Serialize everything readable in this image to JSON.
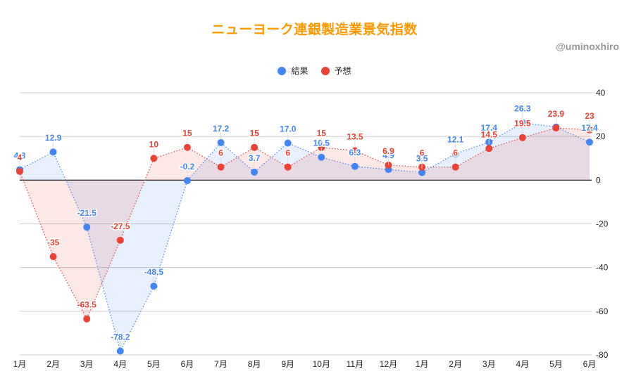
{
  "header": {
    "title": "ニューヨーク連銀製造業景気指数",
    "watermark": "@uminoxhiro"
  },
  "legend": [
    {
      "label": "結果",
      "color": "#4285f4"
    },
    {
      "label": "予想",
      "color": "#ea4335"
    }
  ],
  "chart_data": {
    "type": "line",
    "title": "ニューヨーク連銀製造業景気指数",
    "xlabel": "",
    "ylabel": "",
    "categories": [
      "1月",
      "2月",
      "3月",
      "4月",
      "5月",
      "6月",
      "7月",
      "8月",
      "9月",
      "10月",
      "11月",
      "12月",
      "1月",
      "2月",
      "3月",
      "4月",
      "5月",
      "6月"
    ],
    "series": [
      {
        "name": "結果",
        "color": "#4285f4",
        "values": [
          4.8,
          12.9,
          -21.5,
          -78.2,
          -48.5,
          -0.2,
          17.2,
          3.7,
          17.0,
          10.5,
          6.3,
          4.9,
          3.5,
          12.1,
          17.4,
          26.3,
          24.3,
          17.4
        ],
        "labels": [
          "4.8",
          "12.9",
          "-21.5",
          "-78.2",
          "-48.5",
          "-0.2",
          "17.2",
          "3.7",
          "17.0",
          "10.5",
          "6.3",
          "4.9",
          "3.5",
          "12.1",
          "17.4",
          "26.3",
          "",
          "17.4"
        ]
      },
      {
        "name": "予想",
        "color": "#ea4335",
        "values": [
          4,
          -35,
          -63.5,
          -27.5,
          10,
          15,
          6,
          15,
          6,
          15,
          13.5,
          6.9,
          6,
          6,
          14.5,
          19.5,
          23.9,
          23
        ],
        "labels": [
          "4",
          "-35",
          "-63.5",
          "-27.5",
          "10",
          "15",
          "6",
          "15",
          "6",
          "15",
          "13.5",
          "6.9",
          "6",
          "6",
          "14.5",
          "19.5",
          "23.9",
          "23"
        ]
      }
    ],
    "ylim": [
      -80,
      40
    ],
    "yticks": [
      40,
      20,
      0,
      -20,
      -40,
      -60,
      -80
    ],
    "grid": true,
    "legend_position": "top",
    "style": "dotted lines with filled area, point markers, data labels"
  }
}
